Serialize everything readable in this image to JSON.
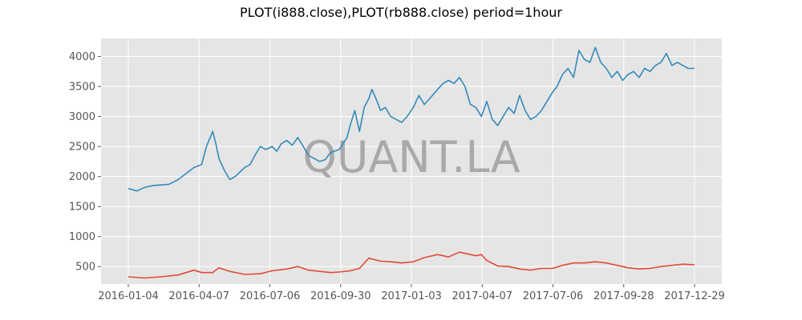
{
  "chart_data": {
    "type": "line",
    "title": "PLOT(i888.close),PLOT(rb888.close) period=1hour",
    "watermark": "QUANT.LA",
    "background": "#e5e5e5",
    "grid": true,
    "legend": "none",
    "xlabel": "",
    "ylabel": "",
    "x_tick_labels": [
      "2016-01-04",
      "2016-04-07",
      "2016-07-06",
      "2016-09-30",
      "2017-01-03",
      "2017-04-07",
      "2017-07-06",
      "2017-09-28",
      "2017-12-29"
    ],
    "y_ticks": [
      500,
      1000,
      1500,
      2000,
      2500,
      3000,
      3500,
      4000
    ],
    "ylim": [
      210,
      4300
    ],
    "x_range": [
      "2016-01-04",
      "2017-12-29"
    ],
    "series": [
      {
        "color": "#348abd",
        "x": [
          "2016-01-04",
          "2016-01-15",
          "2016-01-25",
          "2016-02-05",
          "2016-02-25",
          "2016-03-08",
          "2016-03-18",
          "2016-03-28",
          "2016-04-07",
          "2016-04-13",
          "2016-04-21",
          "2016-04-25",
          "2016-04-29",
          "2016-05-06",
          "2016-05-13",
          "2016-05-20",
          "2016-06-01",
          "2016-06-08",
          "2016-06-14",
          "2016-06-21",
          "2016-06-28",
          "2016-07-06",
          "2016-07-12",
          "2016-07-18",
          "2016-07-25",
          "2016-08-01",
          "2016-08-08",
          "2016-08-15",
          "2016-08-22",
          "2016-08-29",
          "2016-09-05",
          "2016-09-12",
          "2016-09-19",
          "2016-09-30",
          "2016-10-10",
          "2016-10-14",
          "2016-10-20",
          "2016-10-26",
          "2016-11-01",
          "2016-11-07",
          "2016-11-11",
          "2016-11-16",
          "2016-11-22",
          "2016-11-28",
          "2016-12-05",
          "2016-12-12",
          "2016-12-19",
          "2016-12-26",
          "2017-01-03",
          "2017-01-10",
          "2017-01-17",
          "2017-01-24",
          "2017-02-03",
          "2017-02-10",
          "2017-02-17",
          "2017-02-24",
          "2017-03-03",
          "2017-03-10",
          "2017-03-17",
          "2017-03-24",
          "2017-03-31",
          "2017-04-07",
          "2017-04-14",
          "2017-04-21",
          "2017-04-28",
          "2017-05-05",
          "2017-05-12",
          "2017-05-19",
          "2017-05-26",
          "2017-06-02",
          "2017-06-09",
          "2017-06-16",
          "2017-06-23",
          "2017-06-30",
          "2017-07-06",
          "2017-07-13",
          "2017-07-20",
          "2017-07-27",
          "2017-08-03",
          "2017-08-10",
          "2017-08-17",
          "2017-08-24",
          "2017-08-31",
          "2017-09-07",
          "2017-09-14",
          "2017-09-21",
          "2017-09-28",
          "2017-10-05",
          "2017-10-12",
          "2017-10-19",
          "2017-10-26",
          "2017-11-02",
          "2017-11-09",
          "2017-11-16",
          "2017-11-23",
          "2017-11-30",
          "2017-12-07",
          "2017-12-14",
          "2017-12-21",
          "2017-12-29"
        ],
        "values": [
          1800,
          1760,
          1820,
          1850,
          1870,
          1950,
          2050,
          2150,
          2200,
          2500,
          2750,
          2550,
          2300,
          2100,
          1950,
          2000,
          2150,
          2200,
          2350,
          2500,
          2450,
          2500,
          2420,
          2550,
          2600,
          2520,
          2650,
          2500,
          2350,
          2300,
          2250,
          2280,
          2400,
          2450,
          2650,
          2850,
          3100,
          2750,
          3150,
          3300,
          3450,
          3300,
          3100,
          3150,
          3000,
          2950,
          2900,
          3000,
          3150,
          3350,
          3200,
          3300,
          3450,
          3550,
          3600,
          3550,
          3650,
          3500,
          3200,
          3150,
          3000,
          3250,
          2950,
          2850,
          3000,
          3150,
          3050,
          3350,
          3100,
          2950,
          3000,
          3100,
          3250,
          3400,
          3500,
          3700,
          3800,
          3650,
          4100,
          3950,
          3900,
          4150,
          3900,
          3800,
          3650,
          3750,
          3600,
          3700,
          3750,
          3650,
          3800,
          3750,
          3850,
          3900,
          4050,
          3850,
          3900,
          3850,
          3800,
          3800
        ]
      },
      {
        "color": "#e24a33",
        "x": [
          "2016-01-04",
          "2016-01-25",
          "2016-02-15",
          "2016-03-08",
          "2016-03-28",
          "2016-04-07",
          "2016-04-21",
          "2016-04-29",
          "2016-05-13",
          "2016-06-01",
          "2016-06-21",
          "2016-07-06",
          "2016-07-25",
          "2016-08-08",
          "2016-08-22",
          "2016-09-05",
          "2016-09-19",
          "2016-09-30",
          "2016-10-14",
          "2016-10-26",
          "2016-11-07",
          "2016-11-22",
          "2016-12-05",
          "2016-12-19",
          "2017-01-03",
          "2017-01-17",
          "2017-02-03",
          "2017-02-17",
          "2017-03-03",
          "2017-03-17",
          "2017-03-24",
          "2017-03-31",
          "2017-04-07",
          "2017-04-21",
          "2017-05-05",
          "2017-05-19",
          "2017-06-02",
          "2017-06-16",
          "2017-06-30",
          "2017-07-13",
          "2017-07-27",
          "2017-08-10",
          "2017-08-24",
          "2017-09-07",
          "2017-09-21",
          "2017-10-05",
          "2017-10-19",
          "2017-11-02",
          "2017-11-16",
          "2017-11-30",
          "2017-12-14",
          "2017-12-29"
        ],
        "values": [
          330,
          310,
          330,
          360,
          440,
          400,
          400,
          480,
          420,
          370,
          380,
          430,
          460,
          500,
          440,
          420,
          400,
          410,
          430,
          470,
          640,
          590,
          580,
          560,
          580,
          650,
          700,
          660,
          740,
          700,
          680,
          700,
          600,
          510,
          500,
          460,
          440,
          470,
          470,
          520,
          560,
          560,
          580,
          560,
          520,
          480,
          460,
          470,
          500,
          520,
          540,
          530
        ]
      }
    ]
  }
}
